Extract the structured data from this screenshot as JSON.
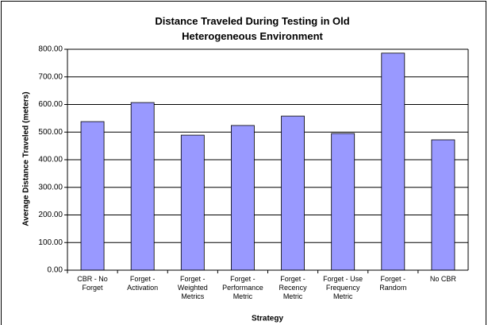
{
  "chart_data": {
    "type": "bar",
    "title": "Distance Traveled During Testing in Old Heterogeneous Environment",
    "x_label": "Strategy",
    "y_label": "Average Distance Traveled (meters)",
    "categories": [
      "CBR - No Forget",
      "Forget - Activation",
      "Forget - Weighted Metrics",
      "Forget - Performance Metric",
      "Forget - Recency Metric",
      "Forget - Use Frequency Metric",
      "Forget - Random",
      "No CBR"
    ],
    "values": [
      538,
      607,
      489,
      524,
      558,
      495,
      786,
      472
    ],
    "color": "#9999ff",
    "ylim": [
      0,
      800
    ],
    "yticks": [
      {
        "value": 0,
        "label": "0.00"
      },
      {
        "value": 100,
        "label": "100.00"
      },
      {
        "value": 200,
        "label": "200.00"
      },
      {
        "value": 300,
        "label": "300.00"
      },
      {
        "value": 400,
        "label": "400.00"
      },
      {
        "value": 500,
        "label": "500.00"
      },
      {
        "value": 600,
        "label": "600.00"
      },
      {
        "value": 700,
        "label": "700.00"
      },
      {
        "value": 800,
        "label": "800.00"
      }
    ],
    "grid": true
  }
}
